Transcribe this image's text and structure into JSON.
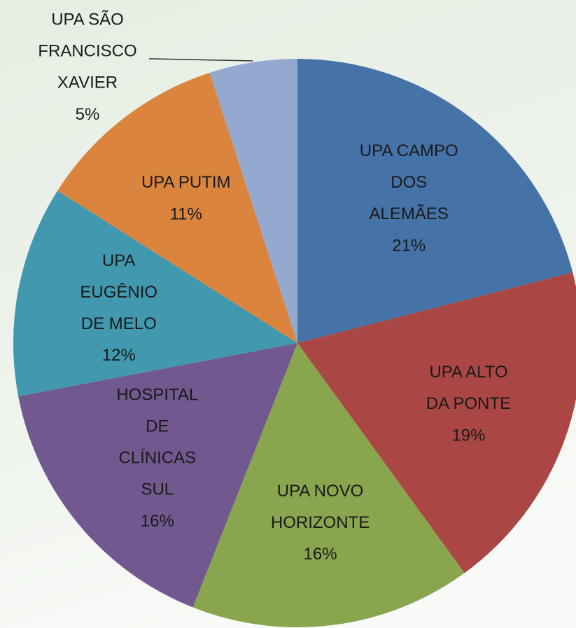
{
  "chart_data": {
    "type": "pie",
    "categories": [
      "UPA CAMPO DOS ALEMÃES",
      "UPA ALTO DA PONTE",
      "UPA NOVO HORIZONTE",
      "HOSPITAL DE CLÍNICAS SUL",
      "UPA EUGÊNIO DE MELO",
      "UPA PUTIM",
      "UPA SÃO FRANCISCO XAVIER"
    ],
    "values": [
      21,
      19,
      16,
      16,
      12,
      11,
      5
    ],
    "value_labels": [
      "21%",
      "19%",
      "16%",
      "16%",
      "12%",
      "11%",
      "5%"
    ],
    "colors": [
      "#4572a7",
      "#aa4643",
      "#89a54e",
      "#71588f",
      "#4198af",
      "#db843d",
      "#93a9cf"
    ]
  }
}
